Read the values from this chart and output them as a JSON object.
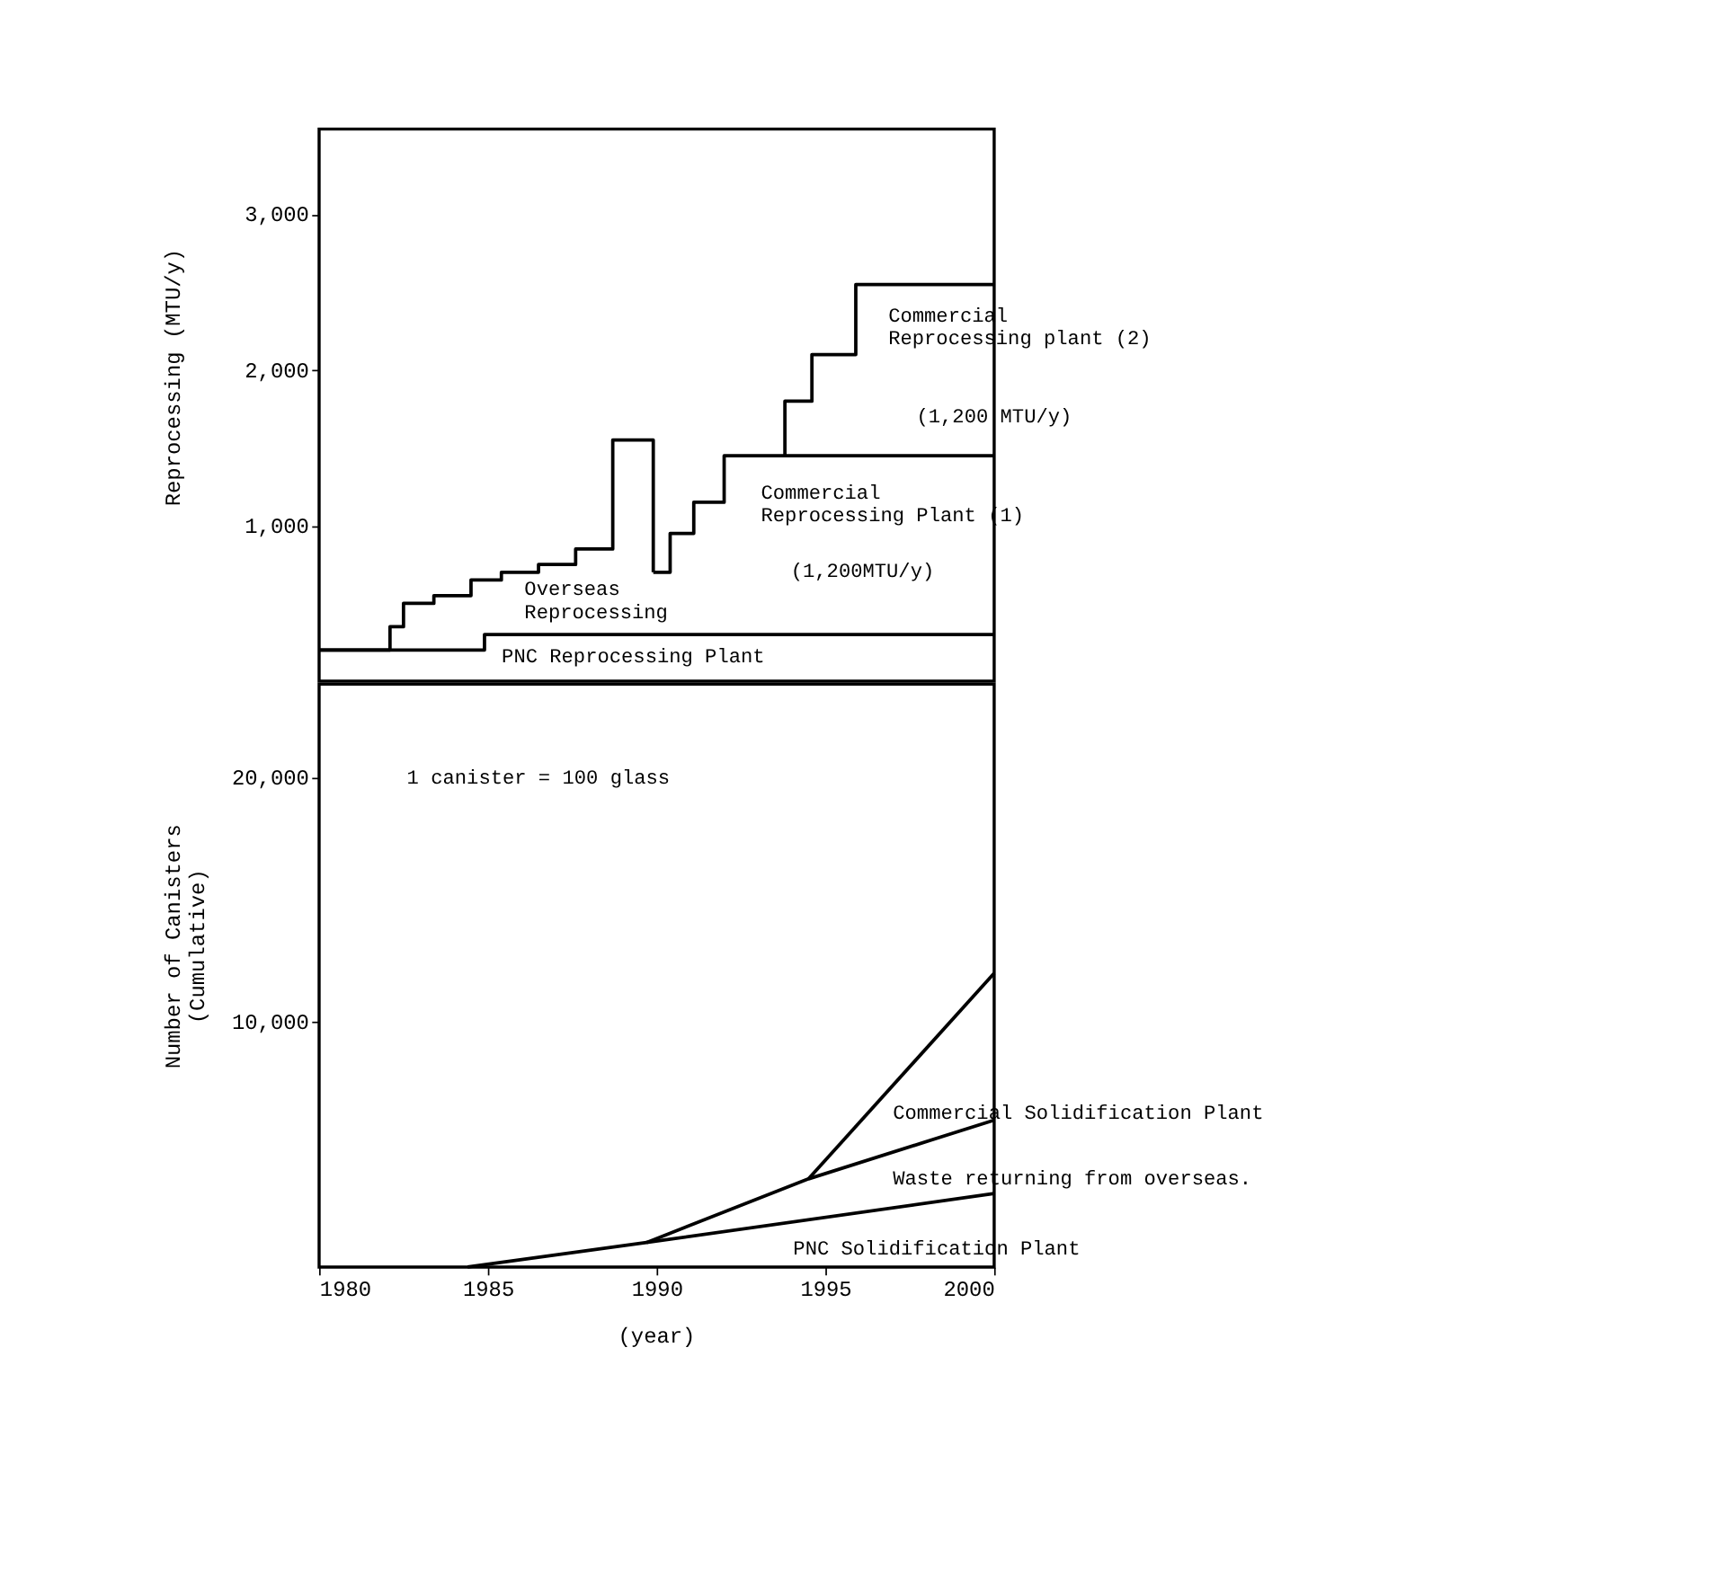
{
  "chart_data": [
    {
      "type": "step",
      "ylabel": "Reprocessing (MTU/y)",
      "xlim": [
        1980,
        2000
      ],
      "ylim": [
        0,
        3550
      ],
      "yticks": [
        {
          "value": 1000,
          "label": "1,000"
        },
        {
          "value": 2000,
          "label": "2,000"
        },
        {
          "value": 3000,
          "label": "3,000"
        }
      ],
      "tick_labels": "y",
      "grid": false,
      "series": [
        {
          "name": "Overseas Reprocessing",
          "color": "#000000",
          "x": [
            1980,
            1982.1,
            1982.5,
            1983.4,
            1984.5,
            1985.4,
            1986.5,
            1987.6,
            1988.7,
            1989.9
          ],
          "values": [
            200,
            350,
            500,
            550,
            650,
            700,
            750,
            850,
            1550,
            700
          ]
        },
        {
          "name": "Commercial Reprocessing Plant (1)",
          "color": "#000000",
          "x": [
            1989.9,
            1990.4,
            1991.1,
            1992.0,
            2000
          ],
          "values": [
            700,
            950,
            1150,
            1450,
            1450
          ]
        },
        {
          "name": "Commercial Reprocessing plant (2)",
          "color": "#000000",
          "x": [
            1993.8,
            1993.8,
            1994.6,
            1995.9,
            2000
          ],
          "values": [
            1450,
            1800,
            2100,
            2550,
            2550
          ]
        },
        {
          "name": "PNC Reprocessing Plant",
          "color": "#000000",
          "x": [
            1980,
            1984.9,
            2000
          ],
          "values": [
            200,
            300,
            300
          ]
        }
      ],
      "annotations": [
        "(1,200 MTU/y)",
        "(1,200MTU/y)"
      ]
    },
    {
      "type": "line",
      "ylabel": "Number of Canisters (Cumulative)",
      "xlabel": "(year)",
      "xlim": [
        1980,
        2000
      ],
      "ylim": [
        0,
        23800
      ],
      "xticks": [
        1980,
        1985,
        1990,
        1995,
        2000
      ],
      "yticks": [
        {
          "value": 10000,
          "label": "10,000"
        },
        {
          "value": 20000,
          "label": "20,000"
        }
      ],
      "grid": false,
      "series": [
        {
          "name": "Commercial Solidification Plant",
          "color": "#000000",
          "x": [
            1994.5,
            2000
          ],
          "values": [
            3600,
            12000
          ]
        },
        {
          "name": "Waste returning from overseas.",
          "color": "#000000",
          "x": [
            1989.7,
            1994.5,
            2000
          ],
          "values": [
            1000,
            3600,
            6000
          ]
        },
        {
          "name": "PNC Solidification Plant",
          "color": "#000000",
          "x": [
            1984.4,
            1989.7,
            2000
          ],
          "values": [
            0,
            1000,
            3000
          ]
        }
      ],
      "annotations": [
        "1 canister = 100 glass"
      ]
    }
  ]
}
